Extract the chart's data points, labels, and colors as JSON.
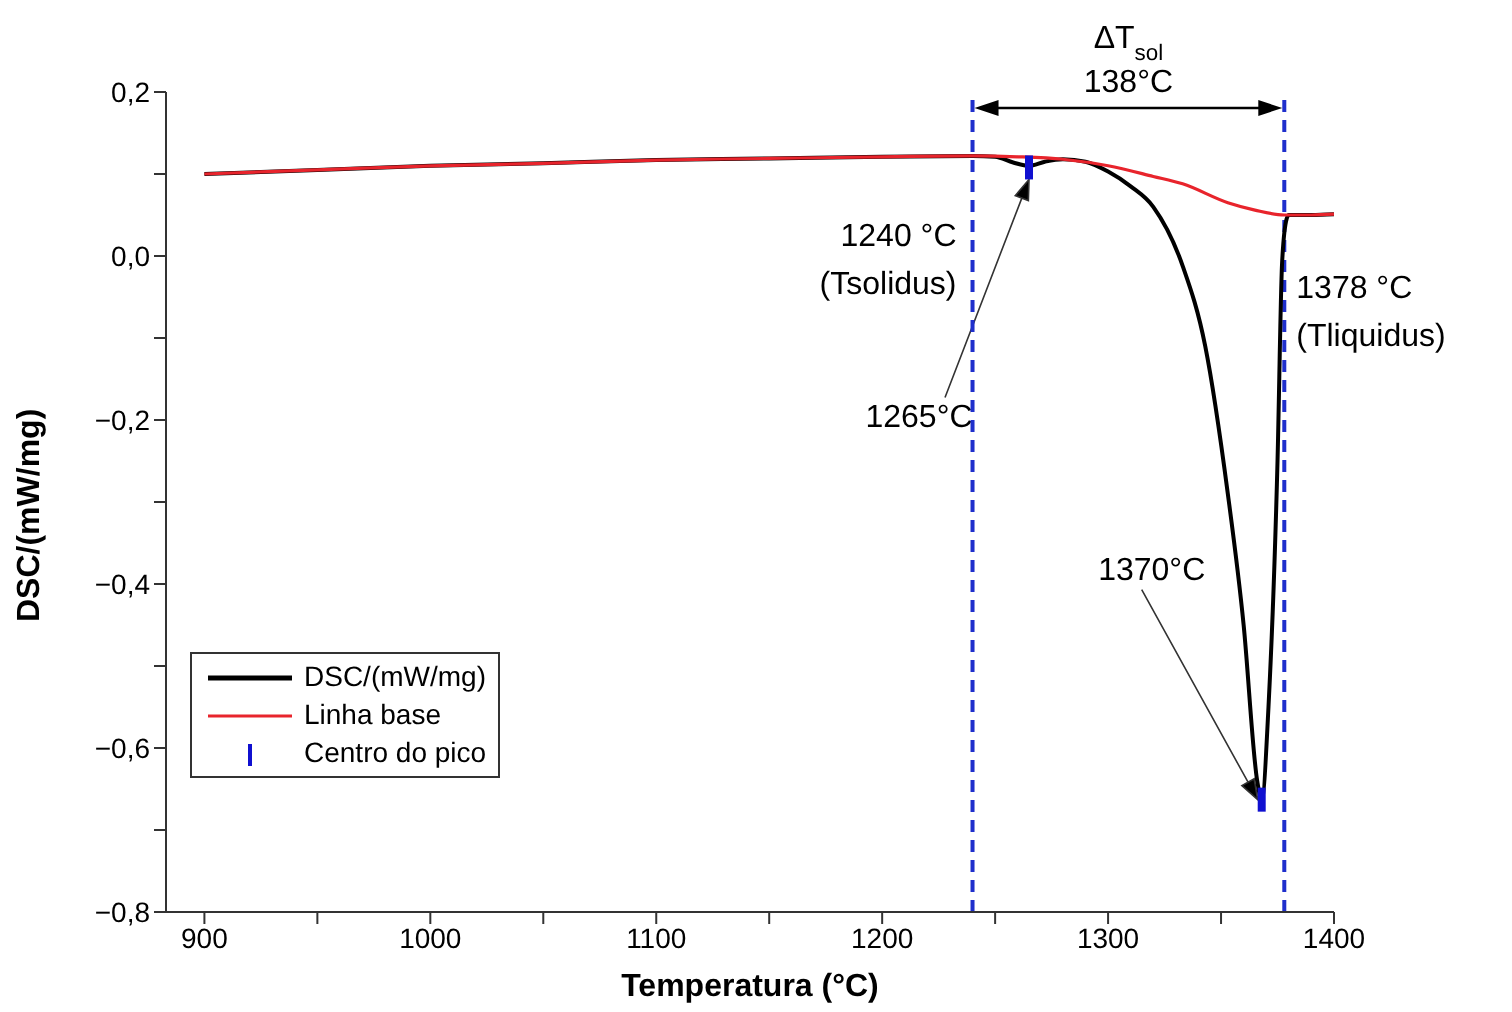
{
  "chart_data": {
    "type": "line",
    "xlabel": "Temperatura (°C)",
    "ylabel": "DSC/(mW/mg)",
    "xlim": [
      883,
      1400
    ],
    "xticks": [
      900,
      {
        "value": 950,
        "label": null
      },
      1000,
      {
        "value": 1050,
        "label": null
      },
      1100,
      {
        "value": 1150,
        "label": null
      },
      1200,
      {
        "value": 1250,
        "label": null
      },
      1300,
      {
        "value": 1350,
        "label": null
      },
      1400
    ],
    "ylim": [
      -0.8,
      0.2
    ],
    "yticks": [
      {
        "value": -0.8,
        "label": "−0,8"
      },
      {
        "value": -0.7,
        "label": null
      },
      {
        "value": -0.6,
        "label": "−0,6"
      },
      {
        "value": -0.5,
        "label": null
      },
      {
        "value": -0.4,
        "label": "−0,4"
      },
      {
        "value": -0.3,
        "label": null
      },
      {
        "value": -0.2,
        "label": "−0,2"
      },
      {
        "value": -0.1,
        "label": null
      },
      {
        "value": 0,
        "label": "0,0"
      },
      {
        "value": 0.1,
        "label": null
      },
      {
        "value": 0.2,
        "label": "0,2"
      }
    ],
    "grid": false,
    "legend": "bottom left",
    "series": [
      {
        "name": "DSC/(mW/mg)",
        "color": "#000000",
        "x": [
          900,
          950,
          1000,
          1050,
          1100,
          1150,
          1200,
          1240,
          1250,
          1258,
          1265,
          1272,
          1280,
          1290,
          1300,
          1310,
          1320,
          1333,
          1343,
          1353,
          1360,
          1366,
          1368,
          1371,
          1375,
          1377,
          1379,
          1380,
          1390,
          1400
        ],
        "values": [
          0.1,
          0.105,
          0.11,
          0.113,
          0.117,
          0.119,
          0.121,
          0.122,
          0.121,
          0.114,
          0.11,
          0.115,
          0.118,
          0.115,
          0.103,
          0.085,
          0.06,
          -0.012,
          -0.11,
          -0.29,
          -0.45,
          -0.64,
          -0.663,
          -0.55,
          -0.25,
          -0.01,
          0.045,
          0.05,
          0.05,
          0.051
        ]
      },
      {
        "name": "Linha base",
        "color": "#e8242c",
        "x": [
          900,
          950,
          1000,
          1050,
          1100,
          1150,
          1200,
          1240,
          1260,
          1280,
          1300,
          1320,
          1333,
          1353,
          1365,
          1378,
          1390,
          1400
        ],
        "values": [
          0.1,
          0.105,
          0.11,
          0.113,
          0.117,
          0.119,
          0.121,
          0.122,
          0.121,
          0.118,
          0.11,
          0.097,
          0.088,
          0.065,
          0.056,
          0.05,
          0.05,
          0.051
        ]
      },
      {
        "name": "Centro do pico",
        "type": "scatter",
        "color": "#1010d0",
        "x": [
          1265,
          1368
        ],
        "values": [
          0.108,
          -0.663
        ]
      }
    ],
    "ref_lines": [
      {
        "axis": "x",
        "value": 1240,
        "label": "1240 °C\n(Tsolidus)",
        "color": "#1f2fcc",
        "line_style": "dashed"
      },
      {
        "axis": "x",
        "value": 1378,
        "label": "1378 °C\n(Tliquidus)",
        "color": "#1f2fcc",
        "line_style": "dashed"
      }
    ],
    "annotations": [
      "ΔT$_{sol}$\n138°C",
      "1265°C",
      "1370°C"
    ]
  }
}
